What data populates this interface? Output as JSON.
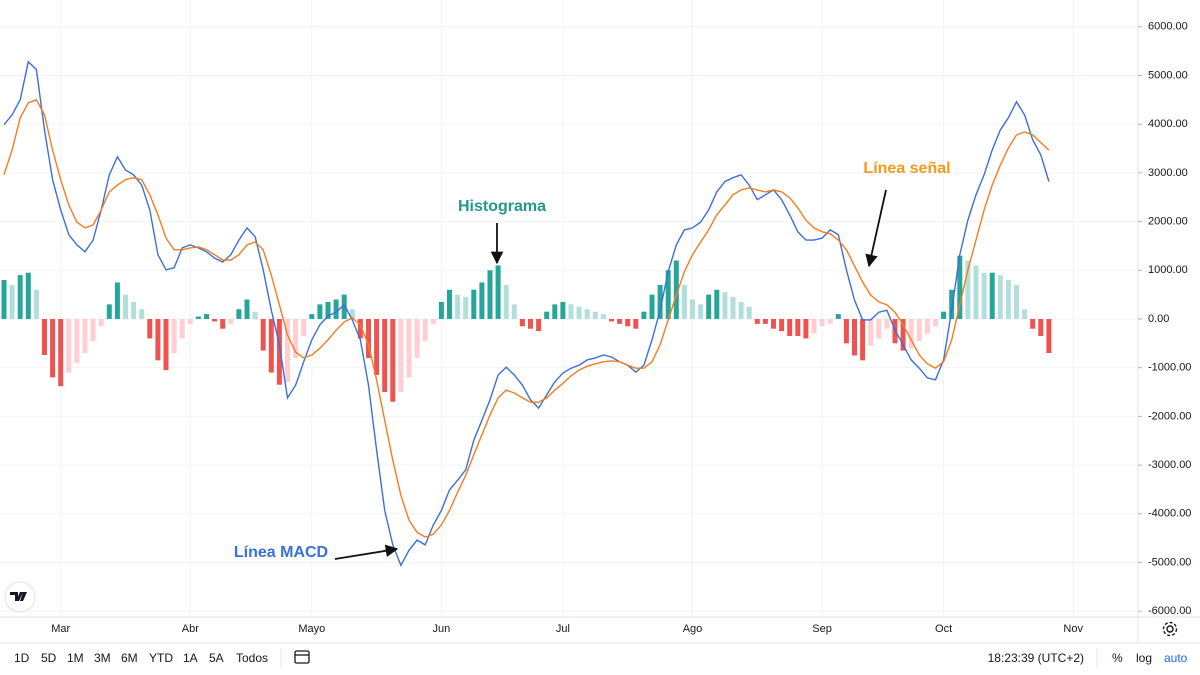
{
  "chart_data": {
    "type": "line",
    "categories": [
      null,
      null,
      null,
      null,
      null,
      null,
      null,
      "Mar",
      null,
      null,
      null,
      null,
      null,
      null,
      null,
      null,
      null,
      null,
      null,
      null,
      null,
      null,
      null,
      "Abr",
      null,
      null,
      null,
      null,
      null,
      null,
      null,
      null,
      null,
      null,
      null,
      null,
      null,
      null,
      "Mayo",
      null,
      null,
      null,
      null,
      null,
      null,
      null,
      null,
      null,
      null,
      null,
      null,
      null,
      null,
      null,
      "Jun",
      null,
      null,
      null,
      null,
      null,
      null,
      null,
      null,
      null,
      null,
      null,
      null,
      null,
      null,
      "Jul",
      null,
      null,
      null,
      null,
      null,
      null,
      null,
      null,
      null,
      null,
      null,
      null,
      null,
      null,
      null,
      "Ago",
      null,
      null,
      null,
      null,
      null,
      null,
      null,
      null,
      null,
      null,
      null,
      null,
      null,
      null,
      null,
      "Sep",
      null,
      null,
      null,
      null,
      null,
      null,
      null,
      null,
      null,
      null,
      null,
      null,
      null,
      null,
      "Oct",
      null,
      null,
      null,
      null,
      null,
      null,
      null,
      null,
      null,
      null,
      null,
      null,
      null,
      null,
      null,
      "Nov"
    ],
    "series": [
      {
        "type": "bar",
        "color_up": "#26a69a",
        "color_up_fading": "#b2dfdb",
        "color_down": "#ef5350",
        "color_down_fading": "#ffcdd2",
        "values": [
          800,
          700,
          900,
          950,
          600,
          -740,
          -1200,
          -1380,
          -1100,
          -900,
          -700,
          -450,
          -150,
          300,
          750,
          500,
          350,
          200,
          -400,
          -850,
          -1050,
          -700,
          -400,
          -100,
          50,
          100,
          -50,
          -200,
          -100,
          200,
          400,
          150,
          -650,
          -1100,
          -1350,
          -1300,
          -800,
          -350,
          100,
          300,
          350,
          400,
          500,
          200,
          -400,
          -800,
          -1150,
          -1500,
          -1700,
          -1500,
          -1200,
          -800,
          -450,
          -100,
          350,
          600,
          500,
          450,
          600,
          750,
          1000,
          1100,
          700,
          300,
          -150,
          -200,
          -250,
          150,
          300,
          350,
          300,
          250,
          200,
          150,
          100,
          -50,
          -100,
          -150,
          -200,
          150,
          500,
          700,
          1000,
          1200,
          700,
          400,
          300,
          500,
          600,
          550,
          450,
          350,
          250,
          -100,
          -100,
          -200,
          -250,
          -350,
          -350,
          -400,
          -300,
          -150,
          -100,
          100,
          -500,
          -750,
          -850,
          -550,
          -400,
          -200,
          -500,
          -650,
          -600,
          -450,
          -300,
          -150,
          150,
          600,
          1300,
          1200,
          1100,
          950,
          950,
          900,
          800,
          700,
          200,
          -200,
          -350,
          -700,
          null,
          null,
          null
        ]
      },
      {
        "type": "line",
        "color": "#3b6fdc",
        "values": [
          3990,
          4190,
          4500,
          5280,
          5120,
          3880,
          2860,
          2240,
          1730,
          1520,
          1380,
          1620,
          2240,
          2960,
          3330,
          3060,
          2960,
          2750,
          2240,
          1320,
          1010,
          1050,
          1460,
          1520,
          1460,
          1380,
          1250,
          1170,
          1320,
          1620,
          1870,
          1690,
          1010,
          180,
          -530,
          -1620,
          -1360,
          -880,
          -430,
          -120,
          60,
          140,
          290,
          -20,
          -430,
          -1360,
          -2690,
          -3930,
          -4640,
          -5060,
          -4750,
          -4540,
          -4640,
          -4230,
          -3930,
          -3510,
          -3310,
          -3100,
          -2490,
          -2080,
          -1660,
          -1150,
          -990,
          -1150,
          -1360,
          -1660,
          -1830,
          -1560,
          -1290,
          -1110,
          -1010,
          -950,
          -840,
          -800,
          -740,
          -780,
          -880,
          -950,
          -1090,
          -950,
          -430,
          180,
          970,
          1520,
          1830,
          1870,
          1990,
          2240,
          2610,
          2820,
          2900,
          2960,
          2750,
          2450,
          2550,
          2650,
          2450,
          2140,
          1790,
          1620,
          1620,
          1660,
          1830,
          1730,
          1010,
          390,
          -20,
          -20,
          140,
          180,
          -230,
          -530,
          -840,
          -1010,
          -1210,
          -1250,
          -840,
          180,
          1320,
          2030,
          2550,
          2960,
          3470,
          3880,
          4130,
          4460,
          4190,
          3680,
          3370,
          2820,
          null,
          null,
          null
        ]
      },
      {
        "type": "line",
        "color": "#f57c1f",
        "values": [
          2960,
          3470,
          4130,
          4440,
          4500,
          4190,
          3470,
          2860,
          2340,
          1990,
          1870,
          1930,
          2240,
          2610,
          2750,
          2860,
          2900,
          2860,
          2550,
          2140,
          1660,
          1420,
          1420,
          1460,
          1480,
          1420,
          1320,
          1210,
          1210,
          1320,
          1520,
          1580,
          1420,
          900,
          290,
          -330,
          -680,
          -800,
          -740,
          -600,
          -430,
          -230,
          -60,
          20,
          -120,
          -530,
          -1250,
          -2080,
          -2900,
          -3620,
          -4130,
          -4380,
          -4480,
          -4420,
          -4230,
          -3930,
          -3560,
          -3210,
          -2790,
          -2380,
          -1970,
          -1620,
          -1460,
          -1520,
          -1620,
          -1710,
          -1710,
          -1620,
          -1460,
          -1320,
          -1170,
          -1050,
          -970,
          -920,
          -880,
          -860,
          -880,
          -950,
          -1010,
          -1010,
          -880,
          -530,
          -20,
          490,
          970,
          1320,
          1580,
          1830,
          2140,
          2340,
          2550,
          2650,
          2690,
          2650,
          2610,
          2650,
          2610,
          2490,
          2280,
          2030,
          1870,
          1790,
          1750,
          1620,
          1420,
          1090,
          760,
          490,
          350,
          290,
          140,
          -120,
          -430,
          -740,
          -920,
          -1010,
          -880,
          -430,
          290,
          1010,
          1620,
          2240,
          2750,
          3160,
          3510,
          3780,
          3840,
          3780,
          3620,
          3470,
          null,
          null,
          null
        ]
      }
    ],
    "ylim": [
      -6120,
      6550
    ],
    "yticks": [
      {
        "value": 6000,
        "label": "6000.00"
      },
      {
        "value": 5000,
        "label": "5000.00"
      },
      {
        "value": 4000,
        "label": "4000.00"
      },
      {
        "value": 3000,
        "label": "3000.00"
      },
      {
        "value": 2000,
        "label": "2000.00"
      },
      {
        "value": 1000,
        "label": "1000.00"
      },
      {
        "value": 0,
        "label": "0.00"
      },
      {
        "value": -1000,
        "label": "-1000.00"
      },
      {
        "value": -2000,
        "label": "-2000.00"
      },
      {
        "value": -3000,
        "label": "-3000.00"
      },
      {
        "value": -4000,
        "label": "-4000.00"
      },
      {
        "value": -5000,
        "label": "-5000.00"
      },
      {
        "value": -6000,
        "label": "-6000.00"
      }
    ],
    "grid": true,
    "annotations": [
      {
        "text": "Histograma",
        "color": "#22998b"
      },
      {
        "text": "Línea señal",
        "color": "#f39a1c"
      },
      {
        "text": "Línea MACD",
        "color": "#3b6fdc"
      }
    ]
  },
  "toolbar": {
    "ranges": [
      "1D",
      "5D",
      "1M",
      "3M",
      "6M",
      "YTD",
      "1A",
      "5A",
      "Todos"
    ],
    "time": "18:23:39 (UTC+2)",
    "options": [
      "%",
      "log",
      "auto"
    ]
  }
}
